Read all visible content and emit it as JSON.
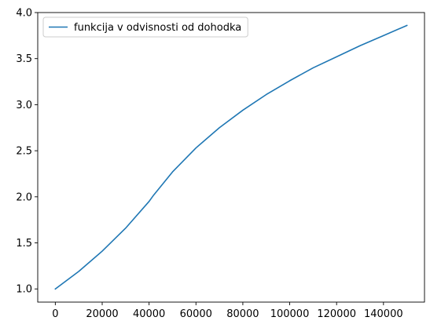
{
  "chart_data": {
    "type": "line",
    "title": "",
    "xlabel": "",
    "ylabel": "",
    "xlim": [
      -7500,
      157500
    ],
    "ylim": [
      0.857,
      4.0
    ],
    "grid": false,
    "legend_placement": "upper-left",
    "x_ticks": [
      0,
      20000,
      40000,
      60000,
      80000,
      100000,
      120000,
      140000
    ],
    "x_tick_labels": [
      "0",
      "20000",
      "40000",
      "60000",
      "80000",
      "100000",
      "120000",
      "140000"
    ],
    "y_ticks": [
      1.0,
      1.5,
      2.0,
      2.5,
      3.0,
      3.5,
      4.0
    ],
    "y_tick_labels": [
      "1.0",
      "1.5",
      "2.0",
      "2.5",
      "3.0",
      "3.5",
      "4.0"
    ],
    "series": [
      {
        "name": "funkcija v odvisnosti od dohodka",
        "color": "#1f77b4",
        "x": [
          0,
          10000,
          20000,
          30000,
          40000,
          42000,
          50000,
          60000,
          70000,
          80000,
          90000,
          100000,
          110000,
          120000,
          130000,
          140000,
          150000
        ],
        "y": [
          1.0,
          1.19,
          1.41,
          1.66,
          1.95,
          2.02,
          2.27,
          2.53,
          2.75,
          2.94,
          3.11,
          3.26,
          3.4,
          3.52,
          3.64,
          3.75,
          3.86
        ]
      }
    ]
  }
}
